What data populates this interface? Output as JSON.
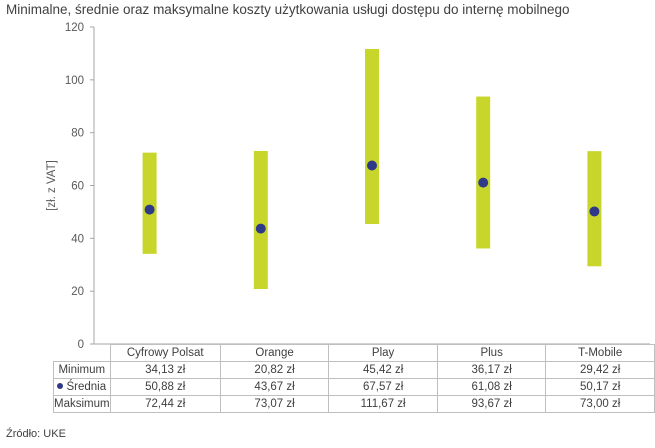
{
  "title": "Minimalne, średnie oraz maksymalne koszty użytkowania usługi dostępu do internę mobilnego",
  "source": "Źródło: UKE",
  "colors": {
    "bar": "#c8d62c",
    "dot": "#2e3a87",
    "axis": "#a6a6a6",
    "text": "#595959"
  },
  "chart_data": {
    "type": "range-dot",
    "title": "Minimalne, średnie oraz maksymalne koszty użytkowania usługi dostępu do internę mobilnego",
    "ylabel": "[zł. z VAT]",
    "ylim": [
      0,
      120
    ],
    "yticks": [
      0,
      20,
      40,
      60,
      80,
      100,
      120
    ],
    "grid": false,
    "categories": [
      "Cyfrowy Polsat",
      "Orange",
      "Play",
      "Plus",
      "T-Mobile"
    ],
    "series": [
      {
        "name": "Minimum",
        "values": [
          34.13,
          20.82,
          45.42,
          36.17,
          29.42
        ]
      },
      {
        "name": "Średnia",
        "values": [
          50.88,
          43.67,
          67.57,
          61.08,
          50.17
        ]
      },
      {
        "name": "Maksimum",
        "values": [
          72.44,
          73.07,
          111.67,
          93.67,
          73.0
        ]
      }
    ],
    "table": {
      "row_labels": [
        "Minimum",
        "Średnia",
        "Maksimum"
      ],
      "rows": [
        [
          "34,13 zł",
          "20,82 zł",
          "45,42 zł",
          "36,17 zł",
          "29,42 zł"
        ],
        [
          "50,88 zł",
          "43,67 zł",
          "67,57 zł",
          "61,08 zł",
          "50,17 zł"
        ],
        [
          "72,44 zł",
          "73,07 zł",
          "111,67 zł",
          "93,67 zł",
          "73,00 zł"
        ]
      ]
    }
  }
}
